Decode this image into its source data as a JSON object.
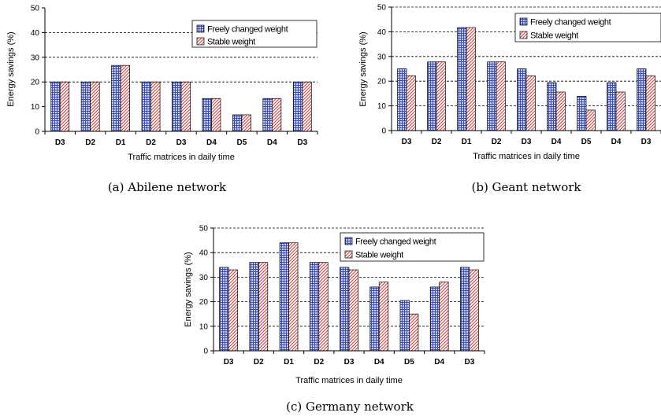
{
  "figures": [
    {
      "caption": "(a) Abilene network",
      "chart_data": {
        "type": "bar",
        "title": "",
        "xlabel": "Traffic matrices in daily time",
        "ylabel": "Energy savings (%)",
        "ylim": [
          0,
          50
        ],
        "yticks": [
          "0",
          "10",
          "20",
          "30",
          "40",
          "50"
        ],
        "categories": [
          "D3",
          "D2",
          "D1",
          "D2",
          "D3",
          "D4",
          "D5",
          "D4",
          "D3"
        ],
        "series": [
          {
            "name": "Freely changed weight",
            "values": [
              20,
              20,
              26.7,
              20,
              20,
              13.3,
              6.7,
              13.3,
              20
            ]
          },
          {
            "name": "Stable weight",
            "values": [
              20,
              20,
              26.7,
              20,
              20,
              13.3,
              6.7,
              13.3,
              20
            ]
          }
        ],
        "grid": "horizontal dashed at 20, 30, 40",
        "legend": "top-right"
      }
    },
    {
      "caption": "(b) Geant network",
      "chart_data": {
        "type": "bar",
        "title": "",
        "xlabel": "Traffic matrices in daily time",
        "ylabel": "Energy savings (%)",
        "ylim": [
          0,
          50
        ],
        "yticks": [
          "0",
          "10",
          "20",
          "30",
          "40",
          "50"
        ],
        "categories": [
          "D3",
          "D2",
          "D1",
          "D2",
          "D3",
          "D4",
          "D5",
          "D4",
          "D3"
        ],
        "series": [
          {
            "name": "Freely changed weight",
            "values": [
              25,
              27.8,
              41.7,
              27.8,
              25,
              19.4,
              13.9,
              19.4,
              25
            ]
          },
          {
            "name": "Stable weight",
            "values": [
              22.2,
              27.8,
              41.7,
              27.8,
              22.2,
              15.6,
              8.3,
              15.6,
              22.2
            ]
          }
        ],
        "grid": "horizontal dashed at 10 to 50",
        "legend": "top-right"
      }
    },
    {
      "caption": "(c) Germany network",
      "chart_data": {
        "type": "bar",
        "title": "",
        "xlabel": "Traffic matrices in daily time",
        "ylabel": "Energy savings (%)",
        "ylim": [
          0,
          50
        ],
        "yticks": [
          "0",
          "10",
          "20",
          "30",
          "40",
          "50"
        ],
        "categories": [
          "D3",
          "D2",
          "D1",
          "D2",
          "D3",
          "D4",
          "D5",
          "D4",
          "D3"
        ],
        "series": [
          {
            "name": "Freely changed weight",
            "values": [
              34,
              36,
              44,
              36,
              34,
              26,
              20.5,
              26,
              34
            ]
          },
          {
            "name": "Stable weight",
            "values": [
              33,
              36,
              44,
              36,
              33,
              28,
              15,
              28,
              33
            ]
          }
        ],
        "grid": "horizontal dashed at 10 to 50",
        "legend": "top-right"
      }
    }
  ],
  "colors": {
    "series1_fill": "#c9cdf0",
    "series1_pattern": "#3a4fb0",
    "series2_fill": "#ffffff",
    "series2_pattern": "#d04545"
  }
}
